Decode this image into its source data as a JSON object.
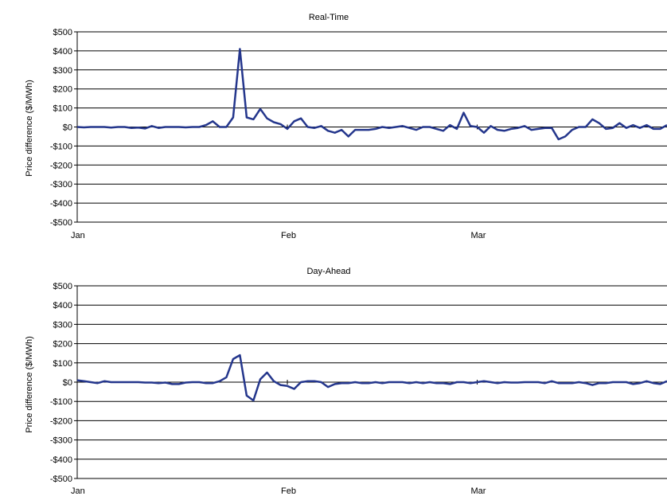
{
  "heading": "",
  "chart_data": [
    {
      "type": "line",
      "title": "Real-Time",
      "ylabel": "Price difference ($/MWh)",
      "xlabel": "",
      "ylim": [
        -500,
        500
      ],
      "yticks": [
        500,
        400,
        300,
        200,
        100,
        0,
        -100,
        -200,
        -300,
        -400,
        -500
      ],
      "ytick_labels": [
        "$500",
        "$400",
        "$300",
        "$200",
        "$100",
        "$0",
        "-$100",
        "-$200",
        "-$300",
        "-$400",
        "-$500"
      ],
      "xtick_labels": [
        "Jan",
        "Feb",
        "Mar"
      ],
      "xtick_days": [
        0,
        31,
        59
      ],
      "x_range_days": [
        0,
        87
      ],
      "grid": "horizontal",
      "series_color": "#24368c",
      "series": [
        {
          "name": "",
          "x_days": [
            0,
            1,
            2,
            3,
            4,
            5,
            6,
            7,
            8,
            9,
            10,
            11,
            12,
            13,
            14,
            15,
            16,
            17,
            18,
            19,
            20,
            21,
            22,
            23,
            24,
            25,
            26,
            27,
            28,
            29,
            30,
            31,
            32,
            33,
            34,
            35,
            36,
            37,
            38,
            39,
            40,
            41,
            42,
            43,
            44,
            45,
            46,
            47,
            48,
            49,
            50,
            51,
            52,
            53,
            54,
            55,
            56,
            57,
            58,
            59,
            60,
            61,
            62,
            63,
            64,
            65,
            66,
            67,
            68,
            69,
            70,
            71,
            72,
            73,
            74,
            75,
            76,
            77,
            78,
            79,
            80,
            81,
            82,
            83,
            84,
            85,
            86,
            87
          ],
          "values": [
            0,
            -2,
            0,
            0,
            0,
            -3,
            0,
            0,
            -5,
            -3,
            -8,
            5,
            -5,
            0,
            0,
            0,
            -2,
            0,
            0,
            10,
            30,
            0,
            0,
            50,
            410,
            50,
            40,
            95,
            45,
            25,
            15,
            -10,
            30,
            45,
            0,
            -5,
            5,
            -20,
            -30,
            -15,
            -50,
            -15,
            -15,
            -15,
            -10,
            0,
            -5,
            0,
            5,
            -5,
            -15,
            0,
            0,
            -10,
            -20,
            10,
            -10,
            75,
            5,
            0,
            -30,
            5,
            -15,
            -20,
            -10,
            -5,
            5,
            -15,
            -10,
            -5,
            -5,
            -65,
            -50,
            -15,
            0,
            0,
            40,
            20,
            -10,
            -5,
            20,
            -5,
            10,
            -5,
            10,
            -10,
            -10,
            10
          ]
        }
      ]
    },
    {
      "type": "line",
      "title": "Day-Ahead",
      "ylabel": "Price difference ($/MWh)",
      "xlabel": "",
      "ylim": [
        -500,
        500
      ],
      "yticks": [
        500,
        400,
        300,
        200,
        100,
        0,
        -100,
        -200,
        -300,
        -400,
        -500
      ],
      "ytick_labels": [
        "$500",
        "$400",
        "$300",
        "$200",
        "$100",
        "$0",
        "-$100",
        "-$200",
        "-$300",
        "-$400",
        "-$500"
      ],
      "xtick_labels": [
        "Jan",
        "Feb",
        "Mar"
      ],
      "xtick_days": [
        0,
        31,
        59
      ],
      "x_range_days": [
        0,
        87
      ],
      "grid": "horizontal",
      "series_color": "#24368c",
      "series": [
        {
          "name": "",
          "x_days": [
            0,
            1,
            2,
            3,
            4,
            5,
            6,
            7,
            8,
            9,
            10,
            11,
            12,
            13,
            14,
            15,
            16,
            17,
            18,
            19,
            20,
            21,
            22,
            23,
            24,
            25,
            26,
            27,
            28,
            29,
            30,
            31,
            32,
            33,
            34,
            35,
            36,
            37,
            38,
            39,
            40,
            41,
            42,
            43,
            44,
            45,
            46,
            47,
            48,
            49,
            50,
            51,
            52,
            53,
            54,
            55,
            56,
            57,
            58,
            59,
            60,
            61,
            62,
            63,
            64,
            65,
            66,
            67,
            68,
            69,
            70,
            71,
            72,
            73,
            74,
            75,
            76,
            77,
            78,
            79,
            80,
            81,
            82,
            83,
            84,
            85,
            86,
            87
          ],
          "values": [
            10,
            5,
            0,
            -5,
            5,
            0,
            0,
            0,
            0,
            0,
            -2,
            -2,
            -5,
            -2,
            -10,
            -10,
            -2,
            0,
            0,
            -5,
            -5,
            5,
            25,
            120,
            140,
            -70,
            -95,
            15,
            50,
            5,
            -15,
            -20,
            -35,
            0,
            5,
            5,
            0,
            -25,
            -10,
            -5,
            -5,
            0,
            -5,
            -5,
            0,
            -5,
            0,
            0,
            0,
            -5,
            0,
            -5,
            0,
            -5,
            -5,
            -10,
            0,
            0,
            -5,
            0,
            5,
            0,
            -5,
            0,
            -2,
            -2,
            0,
            0,
            0,
            -5,
            5,
            -5,
            -5,
            -5,
            0,
            -5,
            -15,
            -5,
            -5,
            0,
            0,
            0,
            -10,
            -5,
            5,
            -5,
            -10,
            5
          ]
        }
      ]
    }
  ]
}
